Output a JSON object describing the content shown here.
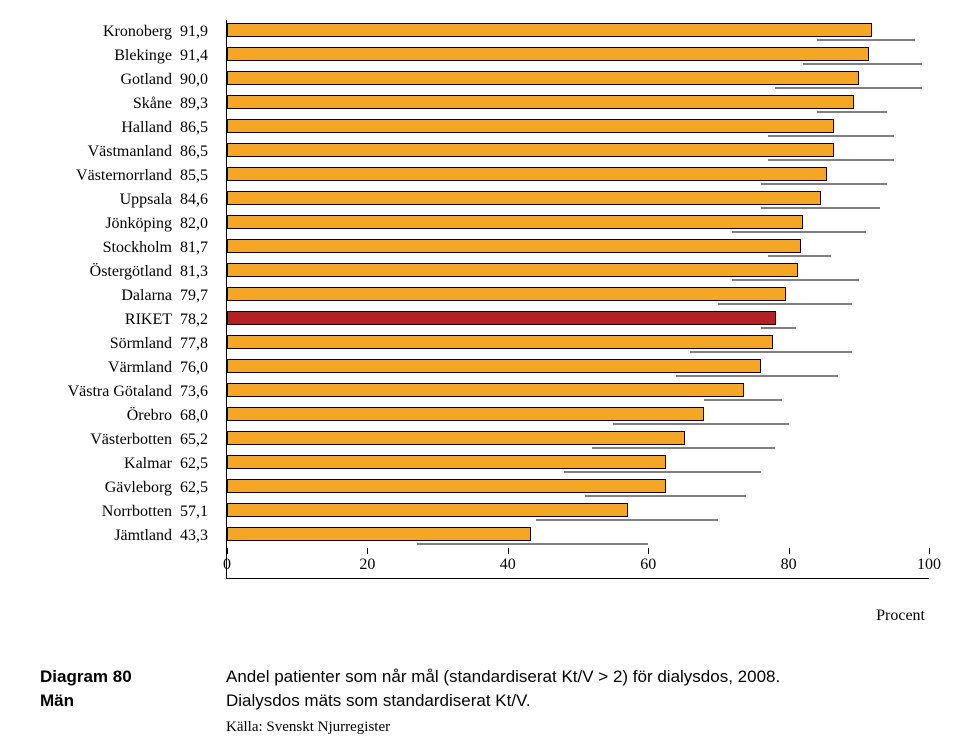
{
  "chart": {
    "type": "bar",
    "xlim": [
      0,
      100
    ],
    "xticks": [
      0,
      20,
      40,
      60,
      80,
      100
    ],
    "xlabel": "Procent",
    "bar_color": "#f5a623",
    "bar_border": "#000000",
    "highlight_color": "#b22222",
    "error_color": "#808080",
    "background_color": "#ffffff",
    "rows": [
      {
        "label": "Kronoberg",
        "value": "91,9",
        "num": 91.9,
        "lo": 84,
        "hi": 98,
        "hl": false
      },
      {
        "label": "Blekinge",
        "value": "91,4",
        "num": 91.4,
        "lo": 82,
        "hi": 99,
        "hl": false
      },
      {
        "label": "Gotland",
        "value": "90,0",
        "num": 90.0,
        "lo": 78,
        "hi": 99,
        "hl": false
      },
      {
        "label": "Skåne",
        "value": "89,3",
        "num": 89.3,
        "lo": 84,
        "hi": 94,
        "hl": false
      },
      {
        "label": "Halland",
        "value": "86,5",
        "num": 86.5,
        "lo": 77,
        "hi": 95,
        "hl": false
      },
      {
        "label": "Västmanland",
        "value": "86,5",
        "num": 86.5,
        "lo": 77,
        "hi": 95,
        "hl": false
      },
      {
        "label": "Västernorrland",
        "value": "85,5",
        "num": 85.5,
        "lo": 76,
        "hi": 94,
        "hl": false
      },
      {
        "label": "Uppsala",
        "value": "84,6",
        "num": 84.6,
        "lo": 76,
        "hi": 93,
        "hl": false
      },
      {
        "label": "Jönköping",
        "value": "82,0",
        "num": 82.0,
        "lo": 72,
        "hi": 91,
        "hl": false
      },
      {
        "label": "Stockholm",
        "value": "81,7",
        "num": 81.7,
        "lo": 77,
        "hi": 86,
        "hl": false
      },
      {
        "label": "Östergötland",
        "value": "81,3",
        "num": 81.3,
        "lo": 72,
        "hi": 90,
        "hl": false
      },
      {
        "label": "Dalarna",
        "value": "79,7",
        "num": 79.7,
        "lo": 70,
        "hi": 89,
        "hl": false
      },
      {
        "label": "RIKET",
        "value": "78,2",
        "num": 78.2,
        "lo": 76,
        "hi": 81,
        "hl": true
      },
      {
        "label": "Sörmland",
        "value": "77,8",
        "num": 77.8,
        "lo": 66,
        "hi": 89,
        "hl": false
      },
      {
        "label": "Värmland",
        "value": "76,0",
        "num": 76.0,
        "lo": 64,
        "hi": 87,
        "hl": false
      },
      {
        "label": "Västra Götaland",
        "value": "73,6",
        "num": 73.6,
        "lo": 68,
        "hi": 79,
        "hl": false
      },
      {
        "label": "Örebro",
        "value": "68,0",
        "num": 68.0,
        "lo": 55,
        "hi": 80,
        "hl": false
      },
      {
        "label": "Västerbotten",
        "value": "65,2",
        "num": 65.2,
        "lo": 52,
        "hi": 78,
        "hl": false
      },
      {
        "label": "Kalmar",
        "value": "62,5",
        "num": 62.5,
        "lo": 48,
        "hi": 76,
        "hl": false
      },
      {
        "label": "Gävleborg",
        "value": "62,5",
        "num": 62.5,
        "lo": 51,
        "hi": 74,
        "hl": false
      },
      {
        "label": "Norrbotten",
        "value": "57,1",
        "num": 57.1,
        "lo": 44,
        "hi": 70,
        "hl": false
      },
      {
        "label": "Jämtland",
        "value": "43,3",
        "num": 43.3,
        "lo": 27,
        "hi": 60,
        "hl": false
      }
    ]
  },
  "caption": {
    "id_line1": "Diagram 80",
    "id_line2": "Män",
    "text_line1": "Andel patienter som når mål (standardiserat Kt/V > 2) för dialysdos, 2008.",
    "text_line2": "Dialysdos mäts som standardiserat Kt/V.",
    "source": "Källa: Svenskt Njurregister"
  }
}
